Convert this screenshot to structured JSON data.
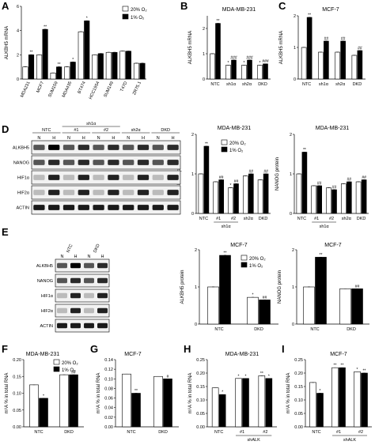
{
  "legend": {
    "normoxia": "20% O₂",
    "hypoxia": "1% O₂"
  },
  "colors": {
    "normoxia": "#ffffff",
    "hypoxia": "#000000",
    "axis": "#000000"
  },
  "panels": {
    "A": {
      "letter": "A"
    },
    "B": {
      "letter": "B"
    },
    "C": {
      "letter": "C"
    },
    "D": {
      "letter": "D"
    },
    "E": {
      "letter": "E"
    },
    "F": {
      "letter": "F"
    },
    "G": {
      "letter": "G"
    },
    "H": {
      "letter": "H"
    },
    "I": {
      "letter": "I"
    }
  },
  "blots": {
    "D": {
      "groups": [
        "NTC",
        "#1",
        "#2",
        "sh2α",
        "DKD"
      ],
      "super_group": "sh1α",
      "lane_labels": [
        "N",
        "H",
        "N",
        "H",
        "N",
        "H",
        "N",
        "H",
        "N",
        "H"
      ],
      "rows": [
        "ALKBH5",
        "NANOG",
        "HIF1α",
        "HIF2α",
        "ACTIN"
      ]
    },
    "E": {
      "groups": [
        "NTC",
        "DKD"
      ],
      "lane_labels": [
        "N",
        "H",
        "N",
        "H"
      ],
      "rows": [
        "ALKBH5",
        "NANOG",
        "HIF1α",
        "HIF2α",
        "ACTIN"
      ]
    }
  },
  "chart_data": [
    {
      "id": "A",
      "type": "bar",
      "title": "",
      "ylabel": "ALKBH5 mRNA",
      "ylim": [
        0,
        6
      ],
      "yticks": [
        0,
        2,
        4,
        6
      ],
      "categories": [
        "MDA231",
        "MCF7",
        "SUM159",
        "MDA435",
        "BT474",
        "HCC1954",
        "SUM149",
        "T47D",
        "ZR75.1"
      ],
      "series": [
        {
          "name": "20% O₂",
          "values": [
            1.0,
            2.0,
            0.5,
            1.0,
            3.9,
            2.0,
            2.2,
            2.3,
            1.3
          ]
        },
        {
          "name": "1% O₂",
          "values": [
            2.0,
            4.1,
            1.0,
            1.4,
            4.8,
            2.1,
            2.2,
            2.3,
            1.3
          ]
        }
      ],
      "sig": [
        [
          "",
          "**"
        ],
        [
          "",
          "**"
        ],
        [
          "",
          "**"
        ],
        [
          "",
          "*"
        ],
        [
          "",
          "*"
        ],
        [
          "",
          ""
        ],
        [
          "",
          ""
        ],
        [
          "",
          ""
        ],
        [
          "",
          ""
        ]
      ]
    },
    {
      "id": "B",
      "type": "bar",
      "title": "MDA-MB-231",
      "ylabel": "ALKBH5 mRNA",
      "ylim": [
        0,
        2.5
      ],
      "yticks": [
        0,
        1,
        2
      ],
      "categories": [
        "NTC",
        "sh1α",
        "sh2α",
        "DKD"
      ],
      "series": [
        {
          "name": "20% O₂",
          "values": [
            1.0,
            0.55,
            0.55,
            0.55
          ]
        },
        {
          "name": "1% O₂",
          "values": [
            2.2,
            0.75,
            0.75,
            0.6
          ]
        }
      ],
      "sig": [
        [
          "",
          "**"
        ],
        [
          "*",
          "###"
        ],
        [
          "*",
          "###"
        ],
        [
          "*",
          "###"
        ]
      ]
    },
    {
      "id": "C",
      "type": "bar",
      "title": "MCF-7",
      "ylabel": "ALKBH5 mRNA",
      "ylim": [
        0,
        2
      ],
      "yticks": [
        0,
        1,
        2
      ],
      "categories": [
        "NTC",
        "sh1α",
        "sh2α",
        "DKD"
      ],
      "series": [
        {
          "name": "20% O₂",
          "values": [
            1.0,
            0.85,
            0.85,
            0.75
          ]
        },
        {
          "name": "1% O₂",
          "values": [
            1.95,
            1.2,
            1.2,
            0.9
          ]
        }
      ],
      "sig": [
        [
          "",
          "**"
        ],
        [
          "",
          "##"
        ],
        [
          "",
          "##"
        ],
        [
          "",
          "##"
        ]
      ]
    },
    {
      "id": "D1",
      "type": "bar",
      "title": "MDA-MB-231",
      "ylabel": "ALKBH5 protein",
      "ylim": [
        0,
        2
      ],
      "yticks": [
        0,
        1,
        2
      ],
      "categories": [
        "NTC",
        "#1",
        "#2",
        "sh2α",
        "DKD"
      ],
      "group_label": "sh1α",
      "series": [
        {
          "name": "20% O₂",
          "values": [
            1.0,
            0.8,
            0.65,
            0.95,
            0.85
          ]
        },
        {
          "name": "1% O₂",
          "values": [
            1.7,
            0.85,
            0.75,
            1.0,
            1.0
          ]
        }
      ],
      "sig": [
        [
          "",
          "**"
        ],
        [
          "",
          "##"
        ],
        [
          "*",
          "##"
        ],
        [
          "",
          "##"
        ],
        [
          "",
          "##"
        ]
      ]
    },
    {
      "id": "D2",
      "type": "bar",
      "title": "MDA-MB-231",
      "ylabel": "NANOG protein",
      "ylim": [
        0,
        2
      ],
      "yticks": [
        0,
        1,
        2
      ],
      "categories": [
        "NTC",
        "#1",
        "#2",
        "sh2α",
        "DKD"
      ],
      "group_label": "sh1α",
      "series": [
        {
          "name": "20% O₂",
          "values": [
            1.0,
            0.7,
            0.65,
            0.75,
            0.8
          ]
        },
        {
          "name": "1% O₂",
          "values": [
            1.55,
            0.7,
            0.6,
            0.8,
            0.85
          ]
        }
      ],
      "sig": [
        [
          "",
          "**"
        ],
        [
          "",
          "##"
        ],
        [
          "",
          "##"
        ],
        [
          "",
          "##"
        ],
        [
          "",
          "##"
        ]
      ]
    },
    {
      "id": "E1",
      "type": "bar",
      "title": "MCF-7",
      "ylabel": "ALKBH5 protein",
      "ylim": [
        0,
        2
      ],
      "yticks": [
        0,
        1,
        2
      ],
      "categories": [
        "NTC",
        "DKD"
      ],
      "series": [
        {
          "name": "20% O₂",
          "values": [
            1.0,
            0.72
          ]
        },
        {
          "name": "1% O₂",
          "values": [
            1.85,
            0.65
          ]
        }
      ],
      "sig": [
        [
          "",
          "**"
        ],
        [
          "*",
          "##"
        ]
      ]
    },
    {
      "id": "E2",
      "type": "bar",
      "title": "MCF-7",
      "ylabel": "NANOG protein",
      "ylim": [
        0,
        2
      ],
      "yticks": [
        0,
        1,
        2
      ],
      "categories": [
        "NTC",
        "DKD"
      ],
      "series": [
        {
          "name": "20% O₂",
          "values": [
            1.0,
            0.95
          ]
        },
        {
          "name": "1% O₂",
          "values": [
            1.8,
            0.95
          ]
        }
      ],
      "sig": [
        [
          "",
          "**"
        ],
        [
          "",
          "##"
        ]
      ]
    },
    {
      "id": "F",
      "type": "bar",
      "title": "MDA-MB-231",
      "ylabel": "m⁶A % in total RNA",
      "ylim": [
        0,
        0.2
      ],
      "yticks": [
        0,
        0.05,
        0.1,
        0.15,
        0.2
      ],
      "categories": [
        "NTC",
        "DKD"
      ],
      "series": [
        {
          "name": "20% O₂",
          "values": [
            0.125,
            0.155
          ]
        },
        {
          "name": "1% O₂",
          "values": [
            0.085,
            0.155
          ]
        }
      ],
      "sig": [
        [
          "",
          "*"
        ],
        [
          "",
          "##"
        ]
      ]
    },
    {
      "id": "G",
      "type": "bar",
      "title": "MCF-7",
      "ylabel": "m⁶A % in total RNA",
      "ylim": [
        0,
        0.14
      ],
      "yticks": [
        0,
        0.02,
        0.04,
        0.06,
        0.08,
        0.1,
        0.12,
        0.14
      ],
      "categories": [
        "NTC",
        "DKD"
      ],
      "series": [
        {
          "name": "20% O₂",
          "values": [
            0.11,
            0.105
          ]
        },
        {
          "name": "1% O₂",
          "values": [
            0.07,
            0.1
          ]
        }
      ],
      "sig": [
        [
          "",
          "**"
        ],
        [
          "",
          "#"
        ]
      ]
    },
    {
      "id": "H",
      "type": "bar",
      "title": "MDA-MB-231",
      "ylabel": "m⁶A % in total RNA",
      "ylim": [
        0,
        0.25
      ],
      "yticks": [
        0,
        0.05,
        0.1,
        0.15,
        0.2,
        0.25
      ],
      "categories": [
        "NTC",
        "#1",
        "#2"
      ],
      "group_label": "shALK",
      "series": [
        {
          "name": "20% O₂",
          "values": [
            0.145,
            0.18,
            0.19
          ]
        },
        {
          "name": "1% O₂",
          "values": [
            0.12,
            0.18,
            0.18
          ]
        }
      ],
      "sig": [
        [
          "",
          "*"
        ],
        [
          "*",
          "*"
        ],
        [
          "**",
          "*"
        ]
      ]
    },
    {
      "id": "I",
      "type": "bar",
      "title": "MCF-7",
      "ylabel": "m⁶A % in total RNA",
      "ylim": [
        0,
        0.25
      ],
      "yticks": [
        0,
        0.05,
        0.1,
        0.15,
        0.2,
        0.25
      ],
      "categories": [
        "NTC",
        "#1",
        "#2"
      ],
      "group_label": "shALK",
      "series": [
        {
          "name": "20% O₂",
          "values": [
            0.165,
            0.22,
            0.205
          ]
        },
        {
          "name": "1% O₂",
          "values": [
            0.125,
            0.22,
            0.2
          ]
        }
      ],
      "sig": [
        [
          "",
          "*"
        ],
        [
          "**",
          "**"
        ],
        [
          "*",
          "**"
        ]
      ]
    }
  ]
}
